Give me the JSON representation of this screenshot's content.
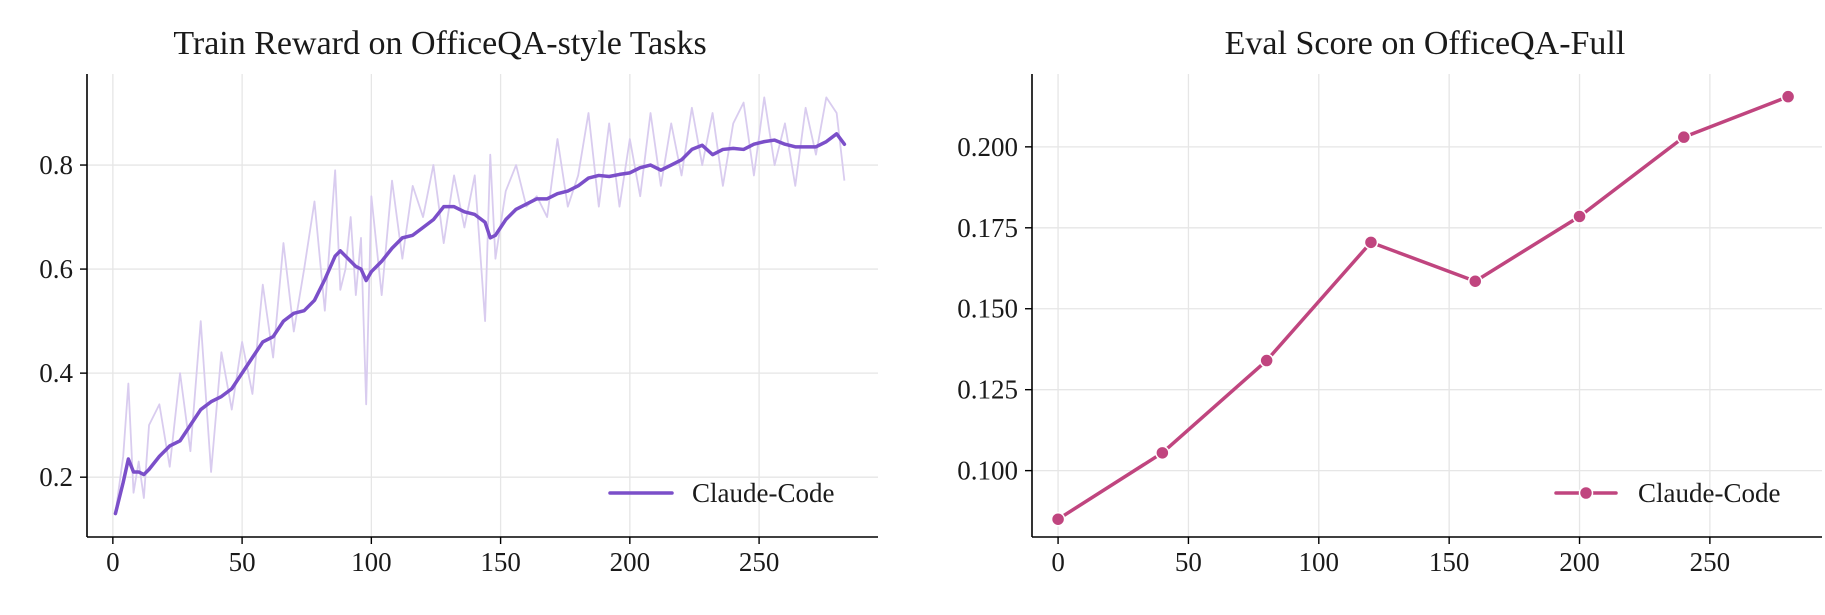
{
  "chart_data": [
    {
      "type": "line",
      "title": "Train Reward on OfficeQA-style Tasks",
      "xlabel": "",
      "ylabel": "",
      "xlim": [
        -10,
        296
      ],
      "ylim": [
        0.085,
        0.975
      ],
      "x_ticks": [
        "0",
        "50",
        "100",
        "150",
        "200",
        "250"
      ],
      "y_ticks": [
        "0.2",
        "0.4",
        "0.6",
        "0.8"
      ],
      "grid": true,
      "legend_position": "lower-right",
      "color": "#7b4fc9",
      "raw_color": "#d9ccef",
      "series": [
        {
          "name": "Claude-Code",
          "x": [
            1,
            4,
            6,
            8,
            10,
            12,
            14,
            18,
            22,
            26,
            30,
            34,
            38,
            42,
            46,
            50,
            54,
            58,
            62,
            66,
            70,
            74,
            78,
            82,
            86,
            88,
            90,
            92,
            94,
            96,
            98,
            100,
            104,
            108,
            112,
            116,
            120,
            124,
            128,
            132,
            136,
            140,
            144,
            146,
            148,
            152,
            156,
            160,
            164,
            168,
            172,
            176,
            180,
            184,
            188,
            192,
            196,
            200,
            204,
            208,
            212,
            216,
            220,
            224,
            228,
            232,
            236,
            240,
            244,
            248,
            252,
            256,
            260,
            264,
            268,
            272,
            276,
            280,
            283
          ],
          "smoothed": [
            0.13,
            0.19,
            0.235,
            0.21,
            0.21,
            0.205,
            0.215,
            0.24,
            0.26,
            0.27,
            0.3,
            0.33,
            0.345,
            0.355,
            0.37,
            0.4,
            0.43,
            0.46,
            0.47,
            0.5,
            0.515,
            0.52,
            0.54,
            0.58,
            0.625,
            0.635,
            0.625,
            0.615,
            0.605,
            0.6,
            0.578,
            0.595,
            0.615,
            0.64,
            0.66,
            0.665,
            0.68,
            0.695,
            0.72,
            0.72,
            0.71,
            0.705,
            0.69,
            0.66,
            0.665,
            0.695,
            0.715,
            0.725,
            0.735,
            0.735,
            0.745,
            0.75,
            0.76,
            0.775,
            0.78,
            0.778,
            0.782,
            0.785,
            0.795,
            0.8,
            0.79,
            0.8,
            0.81,
            0.83,
            0.838,
            0.82,
            0.83,
            0.832,
            0.83,
            0.84,
            0.845,
            0.848,
            0.84,
            0.835,
            0.835,
            0.835,
            0.845,
            0.86,
            0.84
          ],
          "raw": [
            0.13,
            0.24,
            0.38,
            0.17,
            0.23,
            0.16,
            0.3,
            0.34,
            0.22,
            0.4,
            0.25,
            0.5,
            0.21,
            0.44,
            0.33,
            0.46,
            0.36,
            0.57,
            0.43,
            0.65,
            0.48,
            0.6,
            0.73,
            0.52,
            0.79,
            0.56,
            0.6,
            0.7,
            0.55,
            0.66,
            0.34,
            0.74,
            0.55,
            0.77,
            0.62,
            0.76,
            0.7,
            0.8,
            0.65,
            0.78,
            0.68,
            0.78,
            0.5,
            0.82,
            0.62,
            0.75,
            0.8,
            0.72,
            0.74,
            0.7,
            0.85,
            0.72,
            0.78,
            0.9,
            0.72,
            0.88,
            0.72,
            0.85,
            0.74,
            0.9,
            0.76,
            0.88,
            0.78,
            0.91,
            0.8,
            0.9,
            0.76,
            0.88,
            0.92,
            0.78,
            0.93,
            0.8,
            0.88,
            0.76,
            0.91,
            0.82,
            0.93,
            0.9,
            0.77
          ]
        }
      ]
    },
    {
      "type": "line",
      "title": "Eval Score on OfficeQA-Full",
      "xlabel": "",
      "ylabel": "",
      "xlim": [
        -10,
        293
      ],
      "ylim": [
        0.0795,
        0.2225
      ],
      "x_ticks": [
        "0",
        "50",
        "100",
        "150",
        "200",
        "250"
      ],
      "y_ticks": [
        "0.100",
        "0.125",
        "0.150",
        "0.175",
        "0.200"
      ],
      "grid": true,
      "legend_position": "lower-right",
      "color": "#c0457f",
      "series": [
        {
          "name": "Claude-Code",
          "x": [
            0,
            40,
            80,
            120,
            160,
            200,
            240,
            280
          ],
          "y": [
            0.085,
            0.1055,
            0.134,
            0.1705,
            0.1585,
            0.1785,
            0.203,
            0.2155
          ]
        }
      ]
    }
  ]
}
